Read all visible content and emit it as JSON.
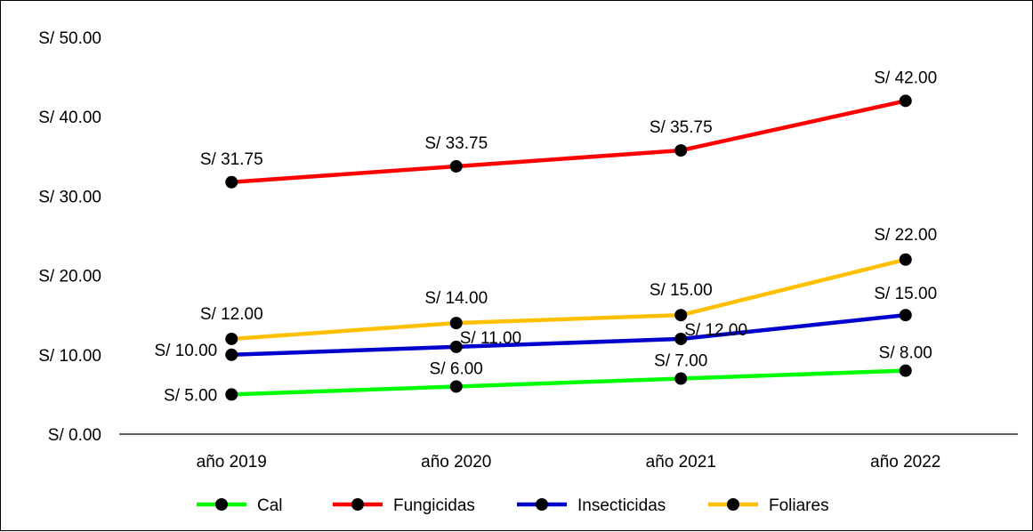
{
  "chart_data": {
    "type": "line",
    "categories": [
      "año 2019",
      "año 2020",
      "año 2021",
      "año 2022"
    ],
    "ylim": [
      0,
      50
    ],
    "yticks": [
      0,
      10,
      20,
      30,
      40,
      50
    ],
    "ytick_labels": [
      "S/ 0.00",
      "S/ 10.00",
      "S/ 20.00",
      "S/ 30.00",
      "S/ 40.00",
      "S/ 50.00"
    ],
    "grid": false,
    "legend_position": "bottom",
    "series": [
      {
        "name": "Cal",
        "color": "#00ff00",
        "values": [
          5,
          6,
          7,
          8
        ],
        "labels": [
          "S/ 5.00",
          "S/ 6.00",
          "S/ 7.00",
          "S/ 8.00"
        ]
      },
      {
        "name": "Fungicidas",
        "color": "#ff0000",
        "values": [
          31.75,
          33.75,
          35.75,
          42
        ],
        "labels": [
          "S/ 31.75",
          "S/ 33.75",
          "S/ 35.75",
          "S/ 42.00"
        ]
      },
      {
        "name": "Insecticidas",
        "color": "#0000cc",
        "values": [
          10,
          11,
          12,
          15
        ],
        "labels": [
          "S/ 10.00",
          "S/ 11.00",
          "S/ 12.00",
          "S/ 15.00"
        ]
      },
      {
        "name": "Foliares",
        "color": "#ffc000",
        "values": [
          12,
          14,
          15,
          22
        ],
        "labels": [
          "S/ 12.00",
          "S/ 14.00",
          "S/ 15.00",
          "S/ 22.00"
        ]
      }
    ]
  }
}
